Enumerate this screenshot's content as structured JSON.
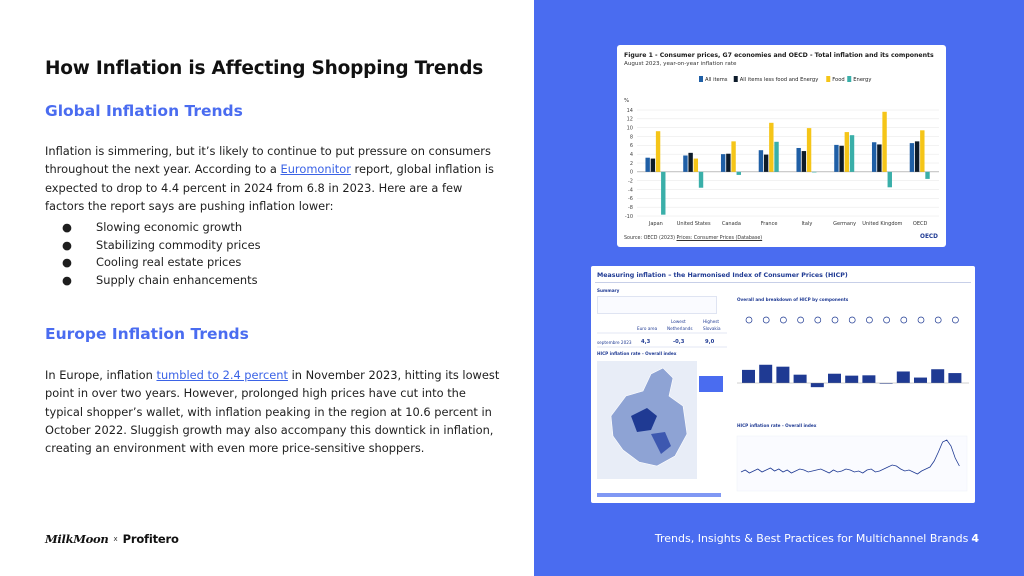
{
  "title": "How Inflation is Affecting Shopping Trends",
  "global": {
    "heading": "Global Inflation Trends",
    "para_before_link": "Inflation is simmering, but it’s likely to continue to put pressure on consumers throughout the next year. According to a ",
    "link": "Euromonitor",
    "para_after_link": " report, global inflation is expected to drop to 4.4 percent in 2024 from 6.8 in 2023. Here are a few factors the report says are pushing inflation lower:",
    "bullets": [
      "Slowing economic growth",
      "Stabilizing commodity prices",
      "Cooling real estate prices",
      "Supply chain enhancements"
    ],
    "bullet_glyph": "●"
  },
  "europe": {
    "heading": "Europe Inflation Trends",
    "para_before_link": "In Europe, inflation ",
    "link": "tumbled to 2.4 percent",
    "para_after_link": " in November 2023, hitting its lowest point in over two years. However, prolonged high prices have cut into the typical shopper’s wallet, with inflation peaking in the region at 10.6 percent in October 2022. Sluggish growth may also accompany this downtick in inflation, creating an environment with even more price-sensitive shoppers."
  },
  "logos": {
    "left": "MilkMoon",
    "sep": "x",
    "right": "Profitero"
  },
  "footer": {
    "text": "Trends, Insights & Best Practices for Multichannel Brands",
    "page": "4"
  },
  "colors": {
    "accent": "#4a6cf0",
    "all_items": "#1f5fa6",
    "core": "#0d1b2a",
    "food": "#f5c518",
    "energy": "#3aafa9"
  },
  "figure1": {
    "title": "Figure 1 - Consumer prices, G7 economies and OECD - Total inflation and its components",
    "subtitle": "August 2023, year-on-year inflation rate",
    "source_prefix": "Source: OECD (2023) ",
    "source_link": "Prices: Consumer Prices (Database)",
    "badge": "OECD"
  },
  "chart_data": {
    "type": "bar",
    "ylabel": "%",
    "ylim": [
      -10,
      14
    ],
    "yticks": [
      -10,
      -8,
      -6,
      -4,
      -2,
      0,
      2,
      4,
      6,
      8,
      10,
      12,
      14
    ],
    "categories": [
      "Japan",
      "United States",
      "Canada",
      "France",
      "Italy",
      "Germany",
      "United Kingdom",
      "OECD"
    ],
    "series": [
      {
        "name": "All items",
        "values": [
          3.2,
          3.7,
          4.0,
          4.9,
          5.4,
          6.1,
          6.7,
          6.5
        ]
      },
      {
        "name": "All items less food and Energy",
        "values": [
          3.0,
          4.3,
          4.1,
          3.9,
          4.7,
          5.9,
          6.2,
          6.9
        ]
      },
      {
        "name": "Food",
        "values": [
          9.2,
          3.0,
          6.9,
          11.1,
          9.9,
          9.0,
          13.6,
          9.4
        ]
      },
      {
        "name": "Energy",
        "values": [
          -9.7,
          -3.6,
          -0.7,
          6.8,
          0.0,
          8.3,
          -3.5,
          -1.6
        ]
      }
    ]
  },
  "hicp": {
    "title": "Measuring inflation – the Harmonised Index of Consumer Prices (HICP)",
    "summary": "Summary",
    "col_lowest": "Lowest",
    "col_highest": "Highest",
    "col_euro": "Euro area",
    "col_nl": "Netherlands",
    "col_sk": "Slovakia",
    "row_label": "septembre 2023",
    "v_euro": "4,3",
    "v_nl": "-0,3",
    "v_sk": "9,0",
    "map_title": "HICP inflation rate - Overall index",
    "breakdown_title": "Overall and breakdown of HICP by components",
    "line_title": "HICP inflation rate - Overall index",
    "components_bar_values": [
      4.1,
      5.7,
      5.1,
      2.6,
      -1.3,
      2.9,
      2.3,
      2.4,
      -0.2,
      3.6,
      1.7,
      4.3,
      3.1
    ]
  }
}
